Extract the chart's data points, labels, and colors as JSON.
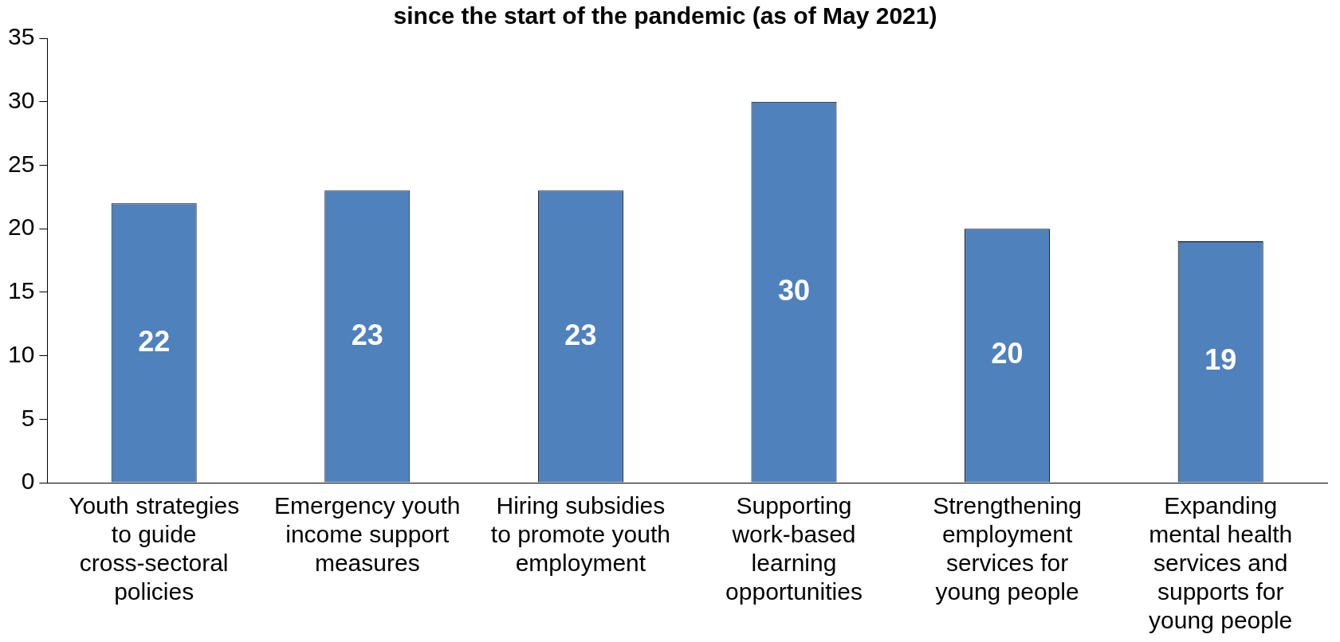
{
  "chart_data": {
    "type": "bar",
    "title": "since the start of the pandemic (as of May 2021)",
    "categories": [
      "Youth strategies to guide cross-sectoral policies",
      "Emergency youth income support measures",
      "Hiring subsidies to promote youth employment",
      "Supporting work-based learning opportunities",
      "Strengthening employment services for young people",
      "Expanding mental health services and supports for young people"
    ],
    "values": [
      22,
      23,
      23,
      30,
      20,
      19
    ],
    "color": "#4f81bd",
    "ylim": [
      0,
      35
    ],
    "yticks": [
      0,
      5,
      10,
      15,
      20,
      25,
      30,
      35
    ],
    "grid": false,
    "legend": false,
    "data_labels": true
  }
}
